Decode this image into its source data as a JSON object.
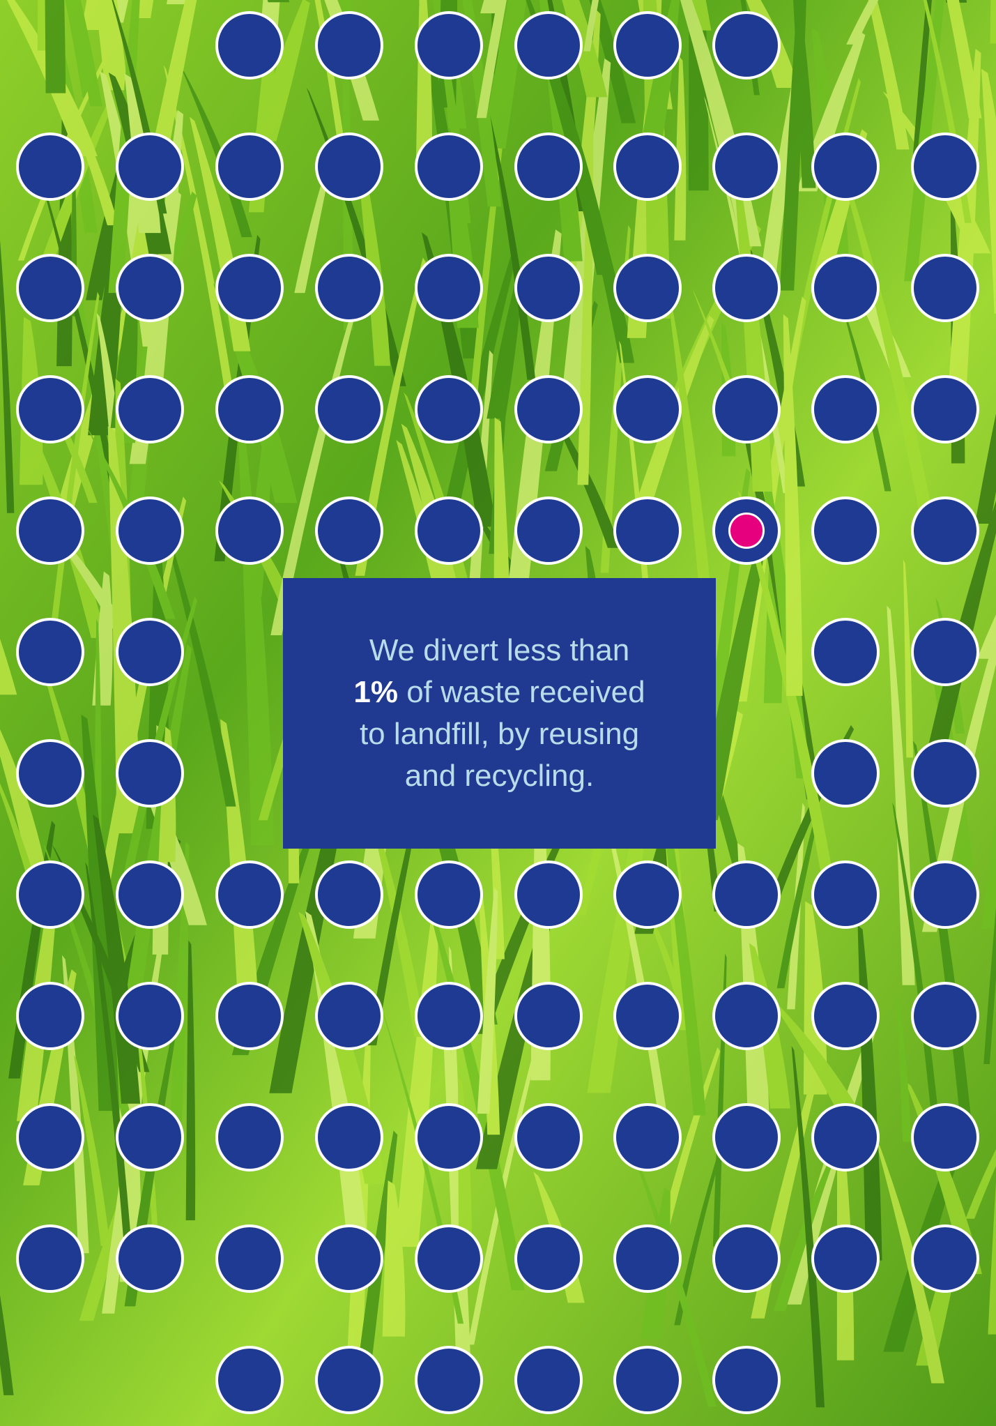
{
  "colors": {
    "dot_fill": "#1f3a93",
    "dot_border": "#ffffff",
    "highlight": "#e6007e",
    "box_fill": "#213a91",
    "text": "#b9dcea",
    "text_strong": "#ffffff",
    "grass_light": "#b7e23a",
    "grass_dark": "#2f7a12"
  },
  "graphic": {
    "description_icon": "grass-background",
    "dot_icon": "circle-dot",
    "highlight_icon": "pink-dot"
  },
  "message": {
    "line1": "We divert less than",
    "line2_strong": "1%",
    "line2_rest": " of waste received",
    "line3": "to landfill, by reusing",
    "line4": "and recycling."
  }
}
